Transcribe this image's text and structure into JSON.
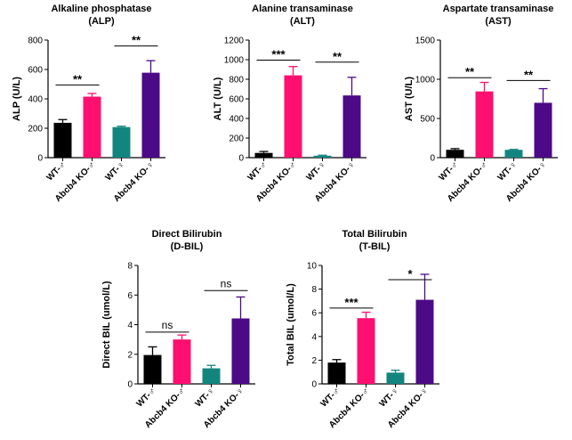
{
  "chart_data": [
    {
      "type": "bar",
      "title": "Alkaline phosphatase",
      "subtitle": "(ALP)",
      "ylabel": "ALP (U/L)",
      "ylim": [
        0,
        800
      ],
      "yticks": [
        "0",
        "200",
        "400",
        "600",
        "800"
      ],
      "categories": [
        "WT-♂",
        "Abcb4 KO-♂",
        "WT-♀",
        "Abcb4 KO-♀"
      ],
      "values": [
        237,
        415,
        208,
        578
      ],
      "errors": [
        22,
        22,
        6,
        82
      ],
      "colors": [
        "#000000",
        "#ff0f6f",
        "#13857f",
        "#4c0a86"
      ],
      "significance": [
        {
          "from": 0,
          "to": 1,
          "label": "**",
          "y": 495
        },
        {
          "from": 2,
          "to": 3,
          "label": "**",
          "y": 760
        }
      ]
    },
    {
      "type": "bar",
      "title": "Alanine transaminase",
      "subtitle": "(ALT)",
      "ylabel": "ALT (U/L)",
      "ylim": [
        0,
        1200
      ],
      "yticks": [
        "0",
        "200",
        "400",
        "600",
        "800",
        "1000",
        "1200"
      ],
      "categories": [
        "WT-♂",
        "Abcb4 KO-♂",
        "WT-♀",
        "Abcb4 KO-♀"
      ],
      "values": [
        48,
        840,
        20,
        635
      ],
      "errors": [
        15,
        90,
        5,
        185
      ],
      "colors": [
        "#000000",
        "#ff0f6f",
        "#13857f",
        "#4c0a86"
      ],
      "significance": [
        {
          "from": 0,
          "to": 1,
          "label": "***",
          "y": 995
        },
        {
          "from": 2,
          "to": 3,
          "label": "**",
          "y": 975
        }
      ]
    },
    {
      "type": "bar",
      "title": "Aspartate transaminase",
      "subtitle": "(AST)",
      "ylabel": "AST (U/L)",
      "ylim": [
        0,
        1500
      ],
      "yticks": [
        "0",
        "500",
        "1000",
        "1500"
      ],
      "categories": [
        "WT-♂",
        "Abcb4 KO-♂",
        "WT-♀",
        "Abcb4 KO-♀"
      ],
      "values": [
        100,
        845,
        100,
        700
      ],
      "errors": [
        15,
        115,
        5,
        180
      ],
      "colors": [
        "#000000",
        "#ff0f6f",
        "#13857f",
        "#4c0a86"
      ],
      "significance": [
        {
          "from": 0,
          "to": 1,
          "label": "**",
          "y": 1020
        },
        {
          "from": 2,
          "to": 3,
          "label": "**",
          "y": 985
        }
      ]
    },
    {
      "type": "bar",
      "title": "Direct Bilirubin",
      "subtitle": "(D-BIL)",
      "ylabel": "Direct BIL (umol/L)",
      "ylim": [
        0,
        8
      ],
      "yticks": [
        "0",
        "2",
        "4",
        "6",
        "8"
      ],
      "categories": [
        "WT-♂",
        "Abcb4 KO-♂",
        "WT-♀",
        "Abcb4 KO-♀"
      ],
      "values": [
        1.95,
        3.0,
        1.05,
        4.42
      ],
      "errors": [
        0.55,
        0.3,
        0.2,
        1.45
      ],
      "colors": [
        "#000000",
        "#ff0f6f",
        "#13857f",
        "#4c0a86"
      ],
      "significance": [
        {
          "from": 0,
          "to": 1,
          "label": "ns",
          "y": 3.5
        },
        {
          "from": 2,
          "to": 3,
          "label": "ns",
          "y": 6.3
        }
      ]
    },
    {
      "type": "bar",
      "title": "Total Bilirubin",
      "subtitle": "(T-BIL)",
      "ylabel": "Total BIL (umol/L)",
      "ylim": [
        0,
        10
      ],
      "yticks": [
        "0",
        "2",
        "4",
        "6",
        "8",
        "10"
      ],
      "categories": [
        "WT-♂",
        "Abcb4 KO-♂",
        "WT-♀",
        "Abcb4 KO-♀"
      ],
      "values": [
        1.8,
        5.55,
        0.95,
        7.1
      ],
      "errors": [
        0.25,
        0.5,
        0.2,
        2.15
      ],
      "colors": [
        "#000000",
        "#ff0f6f",
        "#13857f",
        "#4c0a86"
      ],
      "significance": [
        {
          "from": 0,
          "to": 1,
          "label": "***",
          "y": 6.4
        },
        {
          "from": 2,
          "to": 3,
          "label": "*",
          "y": 8.8
        }
      ]
    }
  ]
}
